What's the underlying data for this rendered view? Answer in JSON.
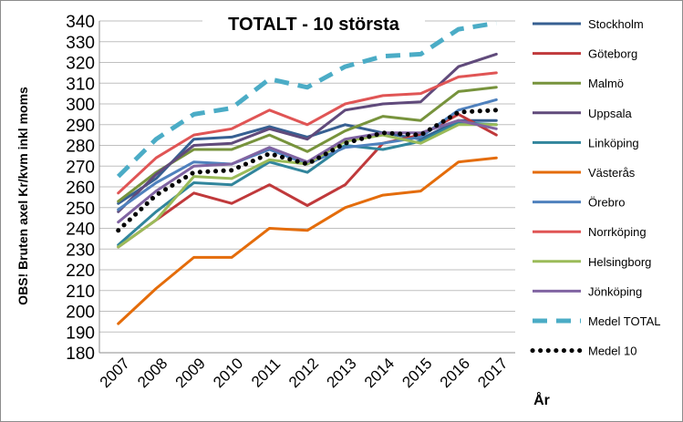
{
  "chart_data": {
    "type": "line",
    "title": "TOTALT - 10 största",
    "ylabel": "OBS! Bruten axel Kr/kvm inkl moms",
    "xlabel": "År",
    "ylim": [
      180,
      340
    ],
    "yticks": [
      180,
      190,
      200,
      210,
      220,
      230,
      240,
      250,
      260,
      270,
      280,
      290,
      300,
      310,
      320,
      330,
      340
    ],
    "categories": [
      "2007",
      "2008",
      "2009",
      "2010",
      "2011",
      "2012",
      "2013",
      "2014",
      "2015",
      "2016",
      "2017"
    ],
    "grid": true,
    "legend_position": "right",
    "series": [
      {
        "name": "Stockholm",
        "color": "#376092",
        "style": "solid",
        "values": [
          252,
          264,
          283,
          284,
          289,
          284,
          290,
          286,
          283,
          292,
          292
        ]
      },
      {
        "name": "Göteborg",
        "color": "#c0393b",
        "style": "solid",
        "values": [
          231,
          244,
          257,
          252,
          261,
          251,
          261,
          281,
          285,
          295,
          285
        ]
      },
      {
        "name": "Malmö",
        "color": "#77933c",
        "style": "solid",
        "values": [
          253,
          267,
          278,
          278,
          285,
          277,
          287,
          294,
          292,
          306,
          308
        ]
      },
      {
        "name": "Uppsala",
        "color": "#604a7b",
        "style": "solid",
        "values": [
          248,
          266,
          280,
          281,
          288,
          283,
          297,
          300,
          301,
          318,
          324
        ]
      },
      {
        "name": "Linköping",
        "color": "#31859c",
        "style": "solid",
        "values": [
          232,
          248,
          262,
          261,
          272,
          267,
          280,
          278,
          282,
          291,
          290
        ]
      },
      {
        "name": "Västerås",
        "color": "#e46c0a",
        "style": "solid",
        "values": [
          194,
          211,
          226,
          226,
          240,
          239,
          250,
          256,
          258,
          272,
          274
        ]
      },
      {
        "name": "Örebro",
        "color": "#4f81bd",
        "style": "solid",
        "values": [
          249,
          262,
          272,
          271,
          278,
          271,
          279,
          281,
          284,
          297,
          302
        ]
      },
      {
        "name": "Norrköping",
        "color": "#e05555",
        "style": "solid",
        "values": [
          257,
          274,
          285,
          288,
          297,
          290,
          300,
          304,
          305,
          313,
          315
        ]
      },
      {
        "name": "Helsingborg",
        "color": "#9bbb59",
        "style": "solid",
        "values": [
          231,
          244,
          265,
          264,
          273,
          271,
          282,
          285,
          281,
          290,
          290
        ]
      },
      {
        "name": "Jönköping",
        "color": "#8064a2",
        "style": "solid",
        "values": [
          243,
          258,
          270,
          271,
          279,
          272,
          283,
          286,
          286,
          292,
          288
        ]
      },
      {
        "name": "Medel TOTAL",
        "color": "#4bacc6",
        "style": "dashed",
        "values": [
          265,
          283,
          295,
          298,
          312,
          308,
          318,
          323,
          324,
          336,
          339
        ]
      },
      {
        "name": "Medel 10",
        "color": "#000000",
        "style": "dotted",
        "values": [
          239,
          256,
          267,
          268,
          276,
          271,
          281,
          286,
          285,
          296,
          297
        ]
      }
    ]
  }
}
